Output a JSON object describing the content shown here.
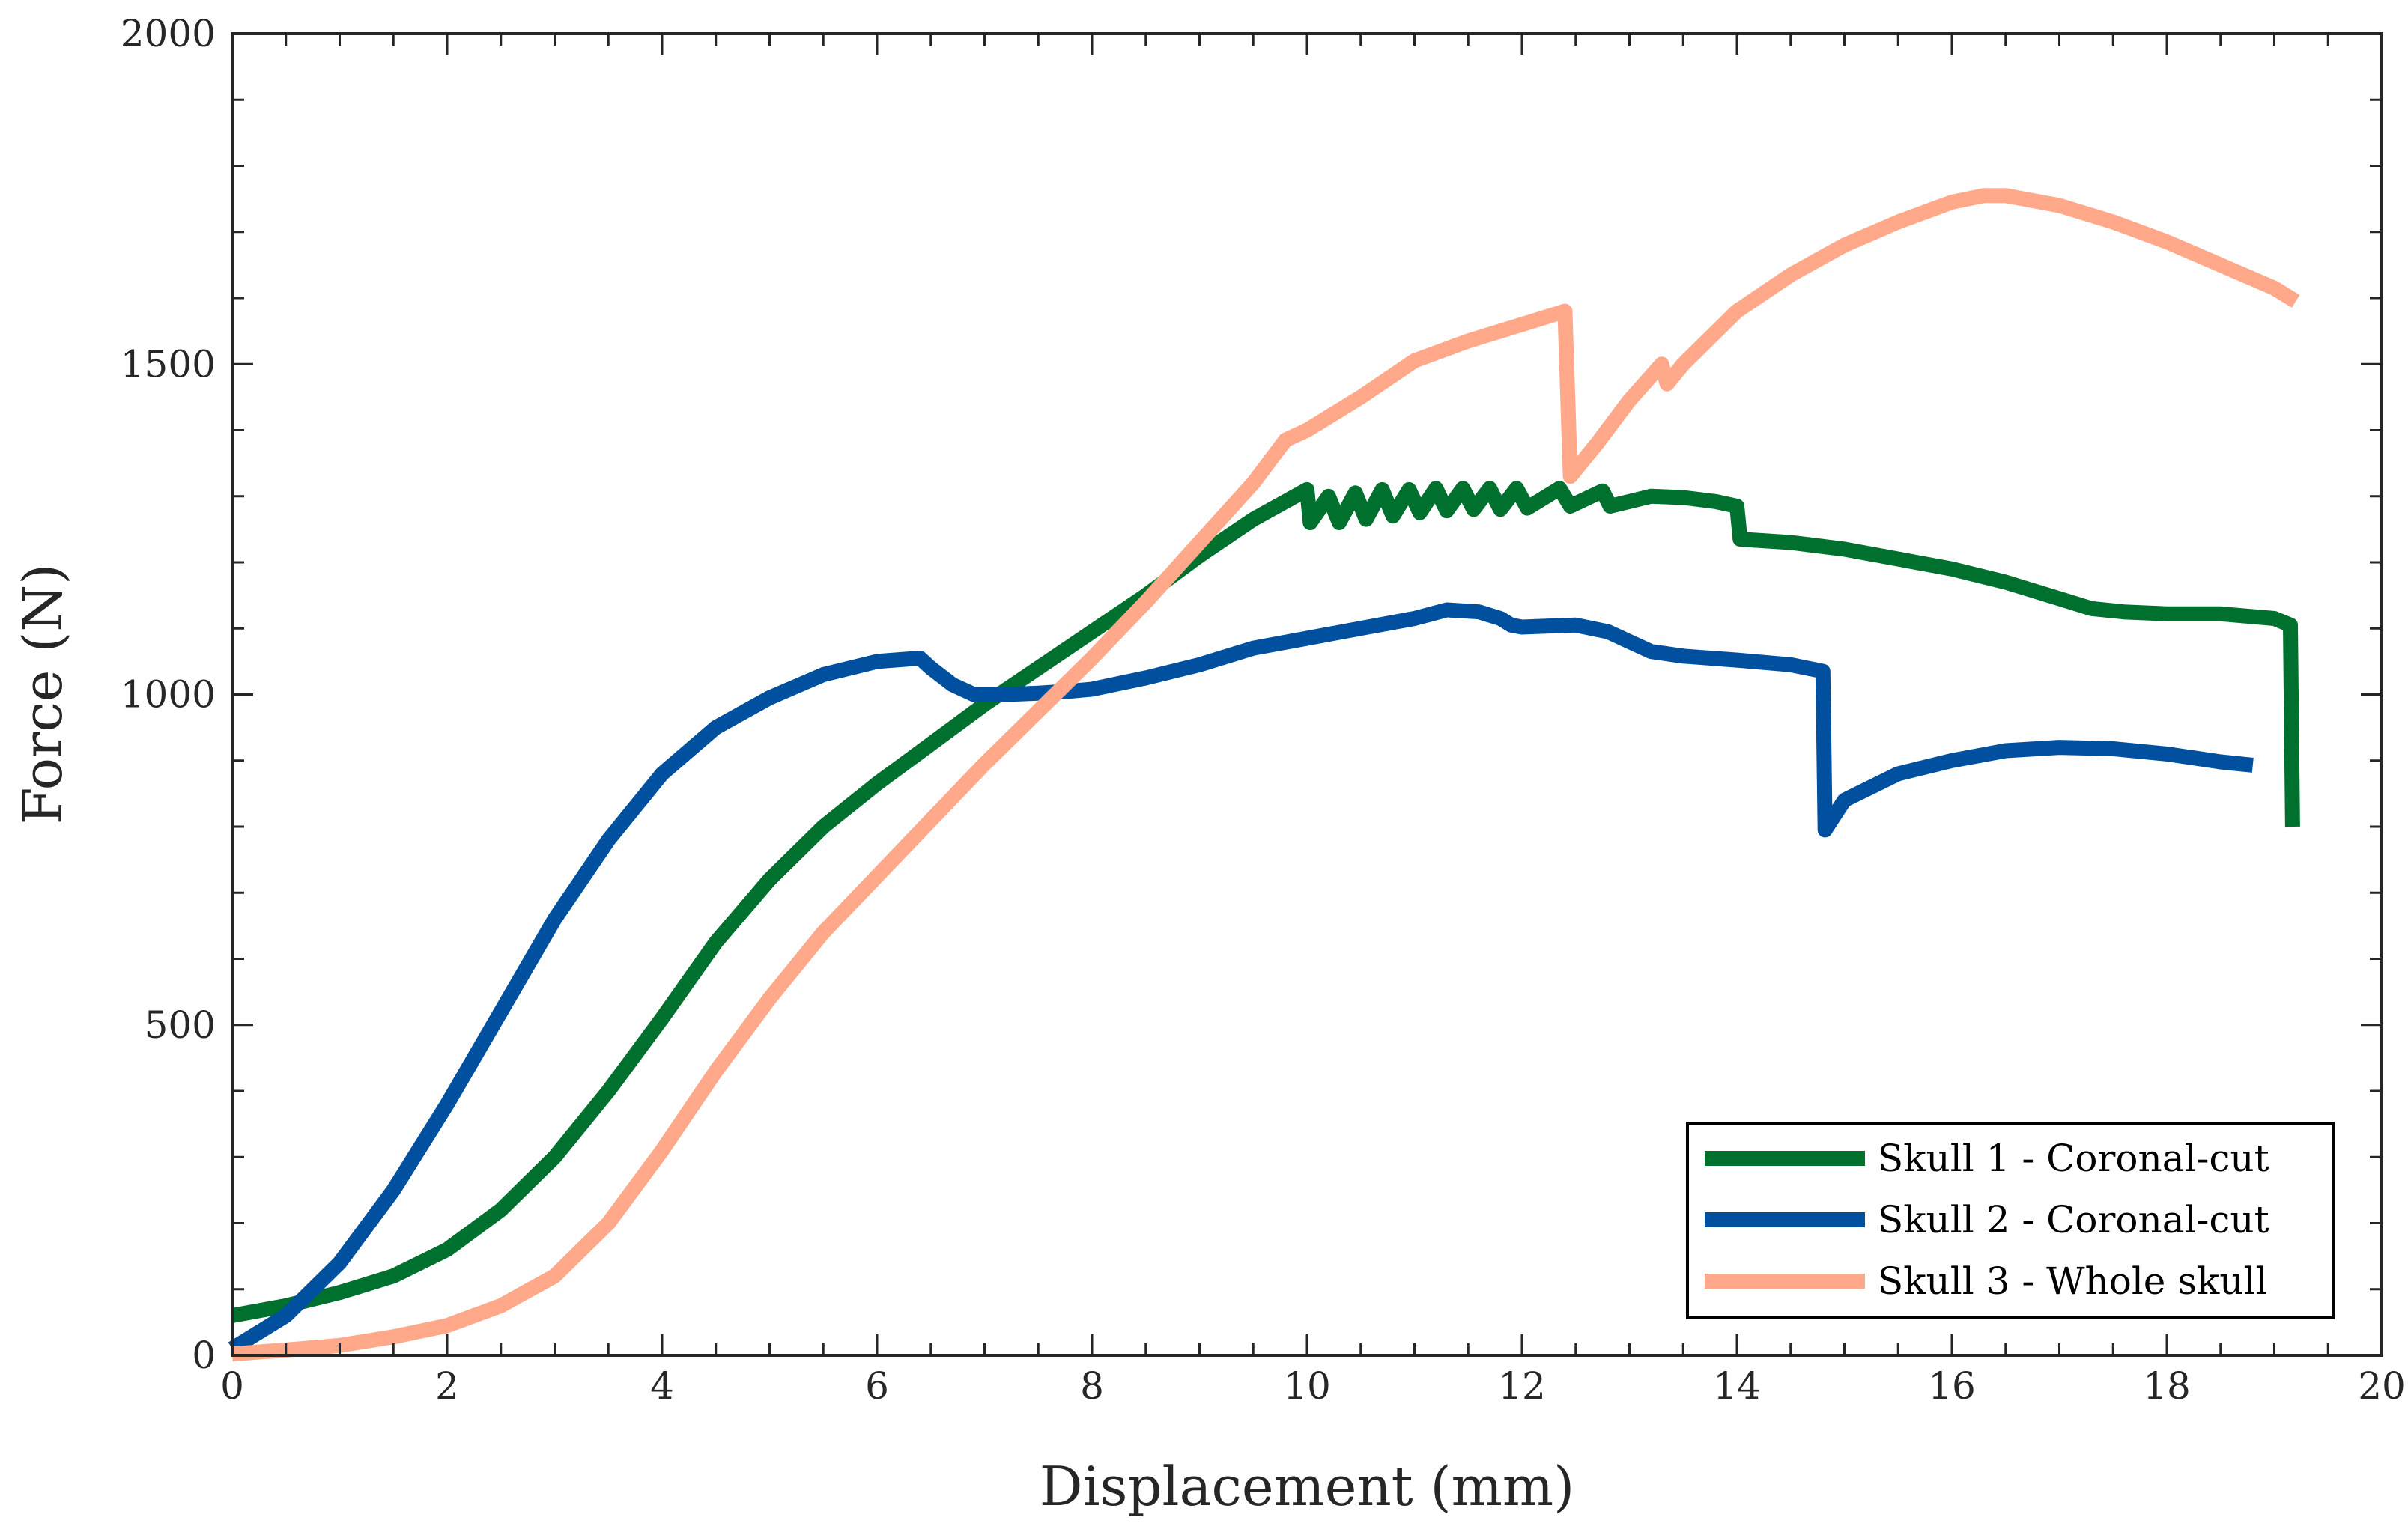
{
  "chart_data": {
    "type": "line",
    "title": "",
    "xlabel": "Displacement (mm)",
    "ylabel": "Force (N)",
    "xlim": [
      0,
      20
    ],
    "ylim": [
      0,
      2000
    ],
    "xticks": [
      0,
      2,
      4,
      6,
      8,
      10,
      12,
      14,
      16,
      18,
      20
    ],
    "yticks": [
      0,
      500,
      1000,
      1500,
      2000
    ],
    "grid": false,
    "legend_position": "bottom-right",
    "series": [
      {
        "name": "Skull 1 - Coronal-cut",
        "color": "#00702e",
        "points": [
          [
            0,
            60
          ],
          [
            0.5,
            75
          ],
          [
            1,
            95
          ],
          [
            1.5,
            120
          ],
          [
            2,
            160
          ],
          [
            2.5,
            220
          ],
          [
            3,
            300
          ],
          [
            3.5,
            400
          ],
          [
            4,
            510
          ],
          [
            4.5,
            625
          ],
          [
            5,
            720
          ],
          [
            5.5,
            800
          ],
          [
            6,
            865
          ],
          [
            6.5,
            925
          ],
          [
            7,
            985
          ],
          [
            7.5,
            1040
          ],
          [
            8,
            1095
          ],
          [
            8.5,
            1150
          ],
          [
            9,
            1210
          ],
          [
            9.5,
            1265
          ],
          [
            10,
            1310
          ],
          [
            10.03,
            1260
          ],
          [
            10.2,
            1300
          ],
          [
            10.3,
            1260
          ],
          [
            10.45,
            1305
          ],
          [
            10.55,
            1265
          ],
          [
            10.7,
            1310
          ],
          [
            10.8,
            1270
          ],
          [
            10.95,
            1310
          ],
          [
            11.05,
            1275
          ],
          [
            11.2,
            1312
          ],
          [
            11.3,
            1278
          ],
          [
            11.45,
            1312
          ],
          [
            11.55,
            1280
          ],
          [
            11.7,
            1312
          ],
          [
            11.8,
            1280
          ],
          [
            11.95,
            1312
          ],
          [
            12.05,
            1282
          ],
          [
            12.35,
            1312
          ],
          [
            12.45,
            1285
          ],
          [
            12.75,
            1308
          ],
          [
            12.82,
            1285
          ],
          [
            13,
            1292
          ],
          [
            13.2,
            1300
          ],
          [
            13.5,
            1298
          ],
          [
            13.8,
            1292
          ],
          [
            14,
            1285
          ],
          [
            14.03,
            1235
          ],
          [
            14.5,
            1230
          ],
          [
            15,
            1220
          ],
          [
            15.5,
            1205
          ],
          [
            16,
            1190
          ],
          [
            16.5,
            1170
          ],
          [
            17,
            1145
          ],
          [
            17.3,
            1130
          ],
          [
            17.6,
            1125
          ],
          [
            18,
            1122
          ],
          [
            18.5,
            1122
          ],
          [
            19,
            1115
          ],
          [
            19.15,
            1105
          ],
          [
            19.17,
            800
          ]
        ]
      },
      {
        "name": "Skull 2 - Coronal-cut",
        "color": "#0050a0",
        "points": [
          [
            0,
            10
          ],
          [
            0.5,
            60
          ],
          [
            1,
            140
          ],
          [
            1.5,
            250
          ],
          [
            2,
            380
          ],
          [
            2.5,
            520
          ],
          [
            3,
            660
          ],
          [
            3.5,
            780
          ],
          [
            4,
            880
          ],
          [
            4.5,
            950
          ],
          [
            5,
            995
          ],
          [
            5.5,
            1030
          ],
          [
            6,
            1050
          ],
          [
            6.4,
            1055
          ],
          [
            6.5,
            1040
          ],
          [
            6.7,
            1015
          ],
          [
            6.9,
            1000
          ],
          [
            7.2,
            1000
          ],
          [
            7.5,
            1002
          ],
          [
            7.8,
            1005
          ],
          [
            8,
            1008
          ],
          [
            8.5,
            1025
          ],
          [
            9,
            1045
          ],
          [
            9.5,
            1070
          ],
          [
            10,
            1085
          ],
          [
            10.5,
            1100
          ],
          [
            11,
            1115
          ],
          [
            11.3,
            1128
          ],
          [
            11.6,
            1125
          ],
          [
            11.8,
            1115
          ],
          [
            11.9,
            1105
          ],
          [
            12,
            1102
          ],
          [
            12.5,
            1105
          ],
          [
            12.8,
            1095
          ],
          [
            13,
            1080
          ],
          [
            13.2,
            1065
          ],
          [
            13.5,
            1058
          ],
          [
            14,
            1052
          ],
          [
            14.5,
            1045
          ],
          [
            14.8,
            1035
          ],
          [
            14.82,
            795
          ],
          [
            15,
            840
          ],
          [
            15.5,
            880
          ],
          [
            16,
            900
          ],
          [
            16.5,
            915
          ],
          [
            17,
            920
          ],
          [
            17.5,
            918
          ],
          [
            18,
            910
          ],
          [
            18.5,
            898
          ],
          [
            18.8,
            893
          ]
        ]
      },
      {
        "name": "Skull 3 - Whole skull",
        "color": "#ffa98a",
        "points": [
          [
            0,
            2
          ],
          [
            0.5,
            8
          ],
          [
            1,
            15
          ],
          [
            1.5,
            28
          ],
          [
            2,
            45
          ],
          [
            2.5,
            75
          ],
          [
            3,
            120
          ],
          [
            3.5,
            200
          ],
          [
            4,
            310
          ],
          [
            4.5,
            430
          ],
          [
            5,
            540
          ],
          [
            5.5,
            640
          ],
          [
            6,
            725
          ],
          [
            6.5,
            810
          ],
          [
            7,
            895
          ],
          [
            7.5,
            975
          ],
          [
            8,
            1055
          ],
          [
            8.5,
            1140
          ],
          [
            9,
            1230
          ],
          [
            9.5,
            1320
          ],
          [
            9.8,
            1385
          ],
          [
            10,
            1400
          ],
          [
            10.5,
            1450
          ],
          [
            11,
            1505
          ],
          [
            11.5,
            1535
          ],
          [
            12,
            1560
          ],
          [
            12.4,
            1580
          ],
          [
            12.45,
            1330
          ],
          [
            12.7,
            1380
          ],
          [
            13,
            1445
          ],
          [
            13.3,
            1500
          ],
          [
            13.35,
            1470
          ],
          [
            13.5,
            1500
          ],
          [
            14,
            1580
          ],
          [
            14.5,
            1635
          ],
          [
            15,
            1680
          ],
          [
            15.5,
            1715
          ],
          [
            16,
            1745
          ],
          [
            16.3,
            1755
          ],
          [
            16.5,
            1755
          ],
          [
            17,
            1740
          ],
          [
            17.5,
            1715
          ],
          [
            18,
            1685
          ],
          [
            18.5,
            1650
          ],
          [
            19,
            1615
          ],
          [
            19.2,
            1595
          ]
        ]
      }
    ]
  }
}
